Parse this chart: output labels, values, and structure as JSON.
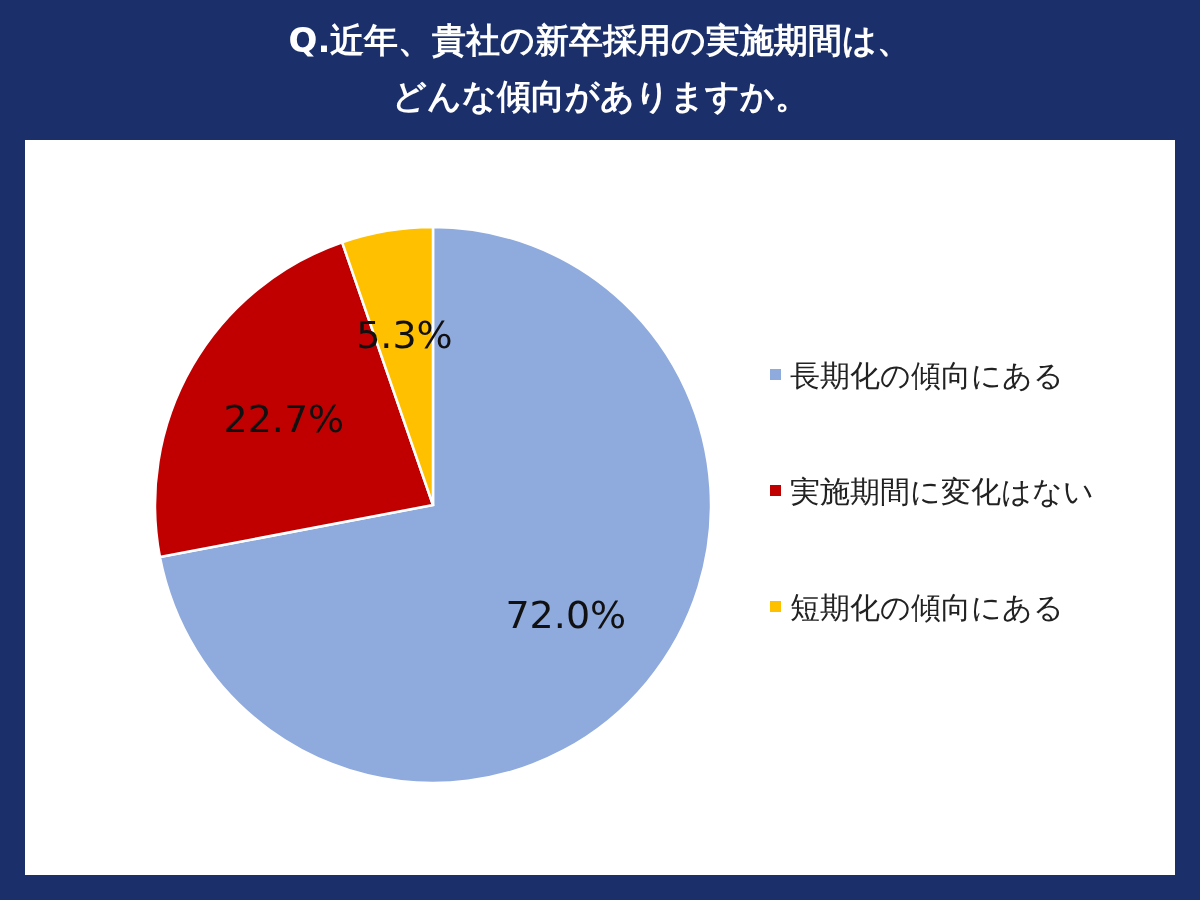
{
  "chart_data": {
    "type": "pie",
    "title": "Q.近年、貴社の新卒採用の実施期間は、どんな傾向がありますか。",
    "categories": [
      "長期化の傾向にある",
      "実施期間に変化はない",
      "短期化の傾向にある"
    ],
    "values": [
      72.0,
      22.7,
      5.3
    ],
    "value_labels": [
      "72.0%",
      "22.7%",
      "5.3%"
    ],
    "colors": [
      "#8faadc",
      "#c00000",
      "#ffc000"
    ],
    "legend": "right"
  }
}
